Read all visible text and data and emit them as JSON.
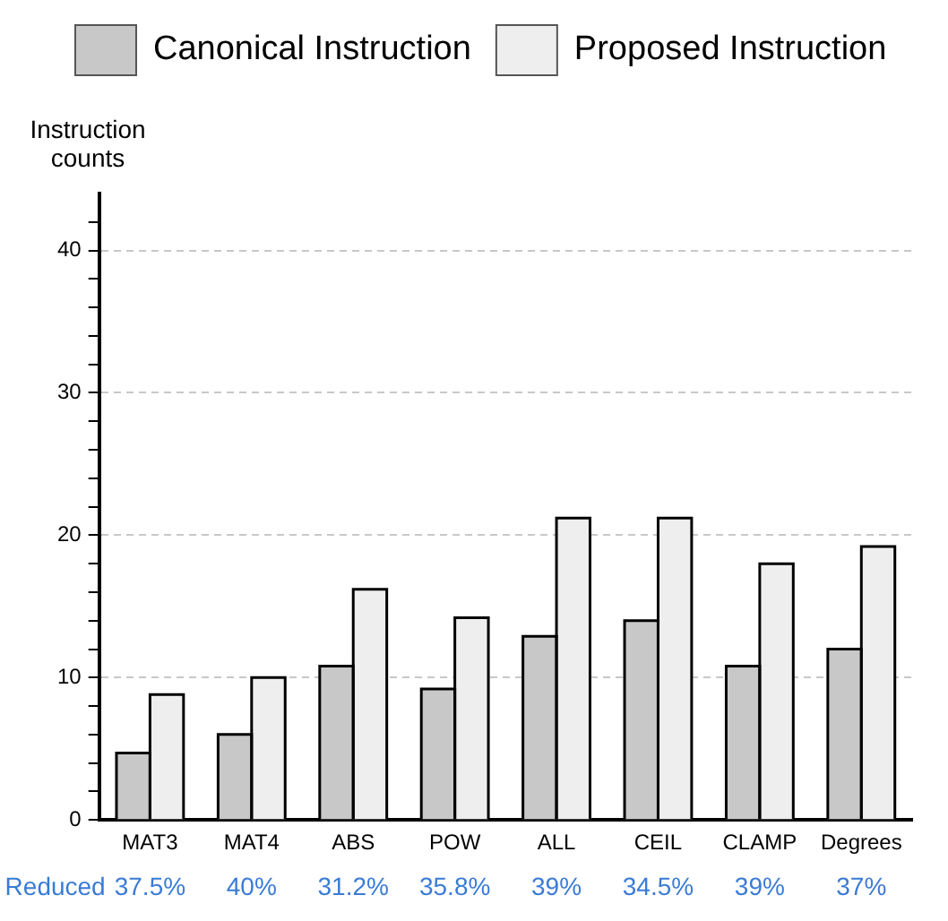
{
  "chart_data": {
    "type": "bar",
    "ylabel": "Instruction counts",
    "categories": [
      "MAT3",
      "MAT4",
      "ABS",
      "POW",
      "ALL",
      "CEIL",
      "CLAMP",
      "Degrees"
    ],
    "series": [
      {
        "name": "Canonical Instruction",
        "color": "#c8c8c8",
        "values": [
          4.7,
          6,
          10.8,
          9.2,
          12.9,
          14,
          10.8,
          12
        ]
      },
      {
        "name": "Proposed Instruction",
        "color": "#eeeeee",
        "values": [
          8.8,
          10,
          16.2,
          14.2,
          21.2,
          21.2,
          18,
          19.2
        ]
      }
    ],
    "ylim": [
      0,
      44
    ],
    "yticks": [
      0,
      {
        "value": 2,
        "label": null
      },
      {
        "value": 4,
        "label": null
      },
      {
        "value": 6,
        "label": null
      },
      {
        "value": 8,
        "label": null
      },
      10,
      {
        "value": 12,
        "label": null
      },
      {
        "value": 14,
        "label": null
      },
      {
        "value": 16,
        "label": null
      },
      {
        "value": 18,
        "label": null
      },
      20,
      {
        "value": 22,
        "label": null
      },
      {
        "value": 24,
        "label": null
      },
      {
        "value": 26,
        "label": null
      },
      {
        "value": 28,
        "label": null
      },
      30,
      {
        "value": 32,
        "label": null
      },
      {
        "value": 34,
        "label": null
      },
      {
        "value": 36,
        "label": null
      },
      {
        "value": 38,
        "label": null
      },
      40,
      {
        "value": 42,
        "label": null
      }
    ],
    "grid": "y",
    "legend": "top",
    "annotations": [
      "Reduced",
      "37.5%",
      "40%",
      "31.2%",
      "35.8%",
      "39%",
      "34.5%",
      "39%",
      "37%"
    ]
  }
}
